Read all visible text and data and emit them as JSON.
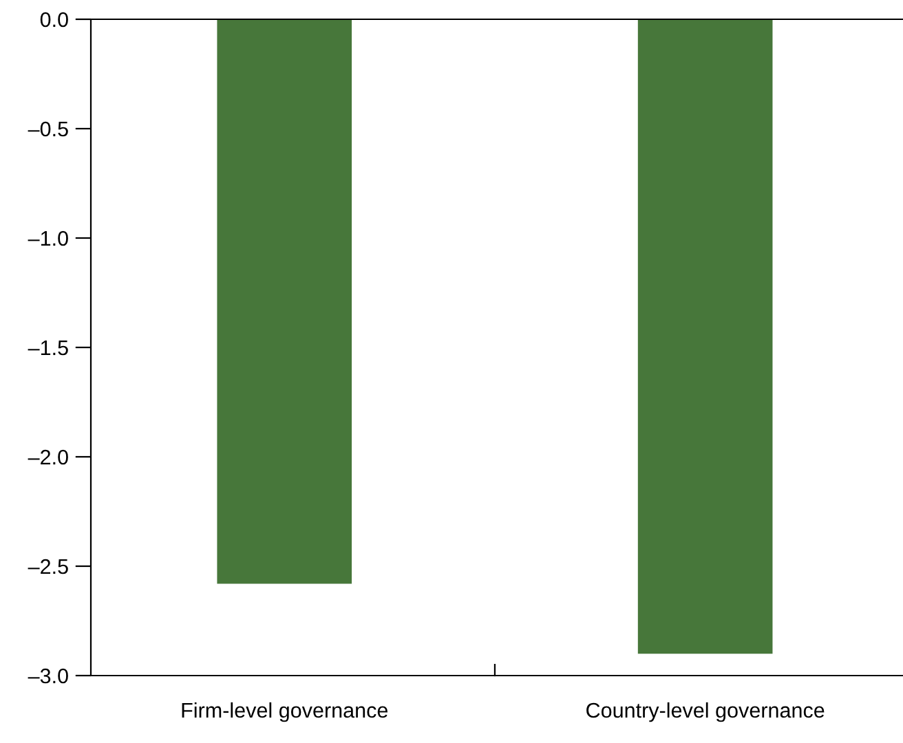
{
  "chart_data": {
    "type": "bar",
    "categories": [
      "Firm-level governance",
      "Country-level governance"
    ],
    "values": [
      -2.58,
      -2.9
    ],
    "color": "#47773a",
    "ylim": [
      -3.0,
      0.0
    ],
    "yticks": [
      {
        "value": -3.0,
        "label": "–3.0"
      },
      {
        "value": -2.5,
        "label": "–2.5"
      },
      {
        "value": -2.0,
        "label": "–2.0"
      },
      {
        "value": -1.5,
        "label": "–1.5"
      },
      {
        "value": -1.0,
        "label": "–1.0"
      },
      {
        "value": -0.5,
        "label": "–0.5"
      },
      {
        "value": 0.0,
        "label": "0.0"
      }
    ],
    "grid": false
  }
}
